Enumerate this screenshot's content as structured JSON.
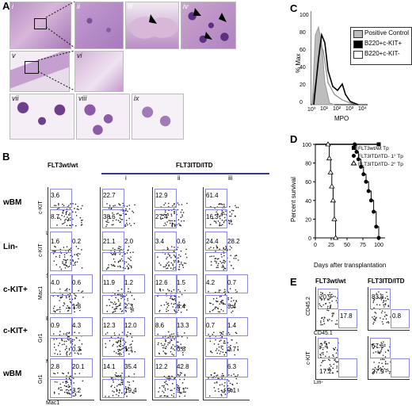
{
  "panels": {
    "A": "A",
    "B": "B",
    "C": "C",
    "D": "D",
    "E": "E"
  },
  "panel_a": {
    "subpanels": [
      "i",
      "ii",
      "iii",
      "iv",
      "v",
      "vi",
      "vii",
      "viii",
      "ix"
    ]
  },
  "panel_b": {
    "col_wt": "FLT3wt/wt",
    "col_itd": "FLT3ITD/ITD",
    "sub_cols": [
      "i",
      "ii",
      "iii"
    ],
    "rows": [
      {
        "label": "wBM",
        "ylab": "c-KIT",
        "xlab": "Lin-",
        "cells": [
          [
            "3.6",
            "8.7"
          ],
          [
            "22.7",
            "38.6"
          ],
          [
            "12.9",
            "27.4"
          ],
          [
            "61.4",
            "16.3"
          ]
        ]
      },
      {
        "label": "Lin-",
        "ylab": "c-KIT",
        "xlab": "Sca-1",
        "cells": [
          [
            "1.6",
            "0.2"
          ],
          [
            "21.1",
            "2.0"
          ],
          [
            "3.4",
            "0.6"
          ],
          [
            "24.4",
            "28.2"
          ]
        ]
      },
      {
        "label": "c-KIT+",
        "ylab": "Mac1",
        "xlab": "B220",
        "cells": [
          [
            "4.0",
            "0.6",
            "1.8"
          ],
          [
            "11.9",
            "1.2",
            "2.3"
          ],
          [
            "12.6",
            "1.5",
            "8.4"
          ],
          [
            "4.2",
            "0.7",
            "3.4"
          ]
        ]
      },
      {
        "label": "c-KIT+",
        "ylab": "Gr1",
        "xlab": "Mac1",
        "cells": [
          [
            "0.9",
            "4.3",
            "0.3"
          ],
          [
            "12.3",
            "12.0",
            "1.1"
          ],
          [
            "8.6",
            "13.3",
            "0.8"
          ],
          [
            "0.7",
            "1.4",
            "2.7"
          ]
        ]
      },
      {
        "label": "wBM",
        "ylab": "Gr1",
        "xlab": "Mac1",
        "cells": [
          [
            "2.8",
            "20.1",
            "3.2"
          ],
          [
            "14.1",
            "35.4",
            "19.4"
          ],
          [
            "12.2",
            "42.8",
            "9.1"
          ],
          [
            "",
            "6.3",
            "9.1"
          ]
        ]
      }
    ]
  },
  "panel_c": {
    "ylabel": "% Max",
    "xlabel": "MPO",
    "xticks": [
      "10⁰",
      "10¹",
      "10²",
      "10³",
      "10⁴"
    ],
    "yticks": [
      "0",
      "20",
      "40",
      "60",
      "80",
      "100"
    ],
    "legend": [
      "Positive Control",
      "B220+c-KIT+",
      "B220+c-KIT-"
    ],
    "legend_colors": [
      "#bdbdbd",
      "#000000",
      "#ffffff"
    ]
  },
  "chart_data": {
    "type": "line",
    "title": "",
    "xlabel": "Days after transplantation",
    "ylabel": "Percent survival",
    "xlim": [
      0,
      110
    ],
    "ylim": [
      0,
      100
    ],
    "xticks": [
      0,
      25,
      50,
      75,
      100
    ],
    "yticks": [
      0,
      20,
      40,
      60,
      80,
      100
    ],
    "legend_position": "top-right",
    "series": [
      {
        "name": "FLT3wt/wt Tp",
        "x": [
          0,
          100
        ],
        "y": [
          100,
          100
        ]
      },
      {
        "name": "FLT3ITD/ITD- 1° Tp",
        "x": [
          0,
          62,
          65,
          68,
          72,
          76,
          80,
          84,
          88,
          92,
          96,
          100
        ],
        "y": [
          100,
          100,
          92,
          84,
          76,
          68,
          60,
          50,
          40,
          28,
          12,
          0
        ]
      },
      {
        "name": "FLT3ITD/ITD- 2° Tp",
        "x": [
          0,
          20,
          22,
          24,
          26,
          28,
          30,
          32
        ],
        "y": [
          100,
          100,
          85,
          70,
          55,
          40,
          20,
          0
        ]
      }
    ]
  },
  "panel_e": {
    "col_wt": "FLT3wt/wt",
    "col_itd": "FLT3ITD/ITD",
    "rows": [
      {
        "ylab": "CD45.2",
        "xlab": "CD45.1",
        "cells": [
          [
            "20.9",
            "17.8"
          ],
          [
            "83.6",
            "0.8"
          ]
        ]
      },
      {
        "ylab": "c-KIT",
        "xlab": "Lin-",
        "cells": [
          [
            "2.4",
            "17.2"
          ],
          [
            "67.6",
            "27.9"
          ]
        ]
      }
    ]
  },
  "colors": {
    "gate": "#8a8adf",
    "tissue": "#c9a2cc",
    "stain": "#6b3f8c"
  }
}
